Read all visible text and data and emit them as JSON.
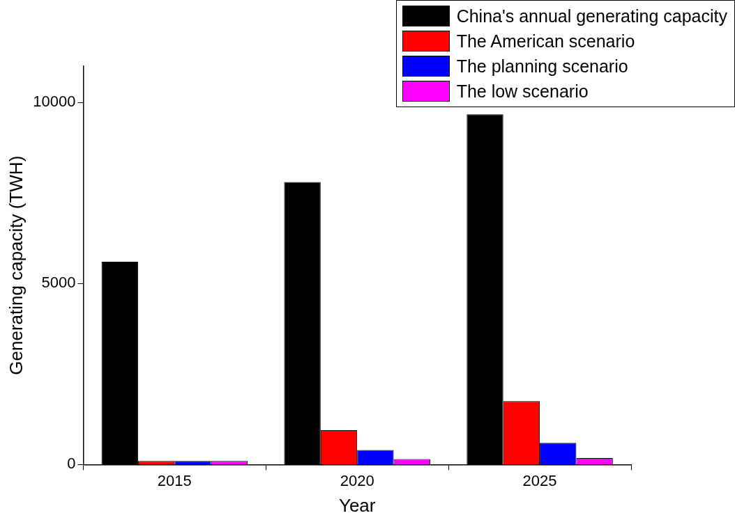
{
  "chart_data": {
    "type": "bar",
    "xlabel": "Year",
    "ylabel": "Generating capacity (TWH)",
    "categories": [
      "2015",
      "2020",
      "2025"
    ],
    "series": [
      {
        "name": "China's annual generating capacity",
        "color": "#000000",
        "values": [
          5600,
          7800,
          9670
        ]
      },
      {
        "name": "The American scenario",
        "color": "#ff0000",
        "values": [
          100,
          950,
          1750
        ]
      },
      {
        "name": "The planning scenario",
        "color": "#0000ff",
        "values": [
          100,
          400,
          600
        ]
      },
      {
        "name": "The low scenario",
        "color": "#ff00ff",
        "values": [
          100,
          150,
          180
        ]
      }
    ],
    "ylim": [
      0,
      11000
    ],
    "yticks": [
      0,
      5000,
      10000
    ],
    "grid": false,
    "legend": "top right"
  }
}
